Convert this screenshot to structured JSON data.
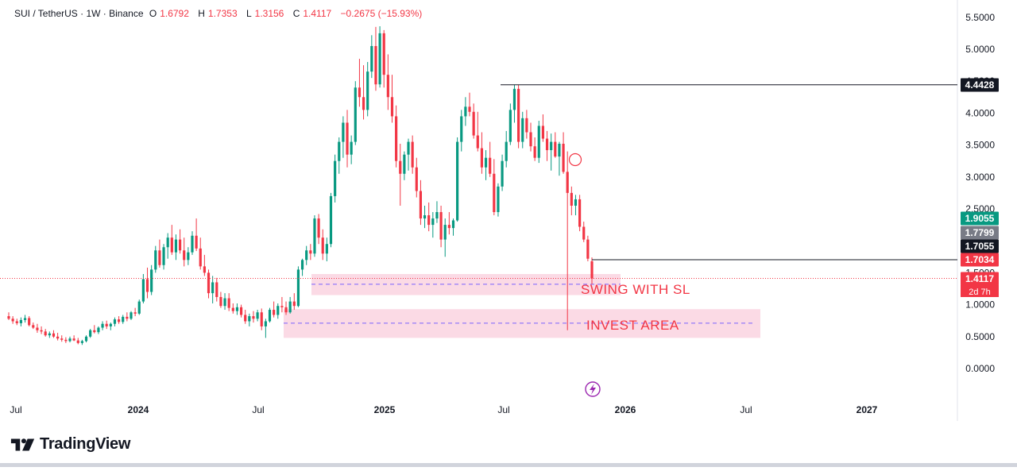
{
  "legend": {
    "symbol": "SUI / TetherUS · 1W · Binance",
    "o_label": "O",
    "o_value": "1.6792",
    "h_label": "H",
    "h_value": "1.7353",
    "l_label": "L",
    "l_value": "1.3156",
    "c_label": "C",
    "c_value": "1.4117",
    "change": "−0.2675 (−15.93%)"
  },
  "brand": {
    "name": "TradingView",
    "logo_icon": "tradingview-logo-icon"
  },
  "colors": {
    "up": "#089981",
    "down": "#f23645",
    "zone": "#f8bbd0",
    "zone_text": "#f23645",
    "dashed": "#7b61ff",
    "hline": "#131722",
    "axis_text": "#131722"
  },
  "annotations": {
    "swing_label": "SWING WITH SL",
    "invest_label": "INVEST AREA"
  },
  "price_labels": [
    {
      "value": "4.4428",
      "bg": "#131722",
      "fg": "#ffffff",
      "price": 4.4428
    },
    {
      "value": "1.9055",
      "bg": "#089981",
      "fg": "#ffffff",
      "price": 1.9055
    },
    {
      "value": "1.7799",
      "bg": "#787b86",
      "fg": "#ffffff",
      "price": 1.7799
    },
    {
      "value": "1.7055",
      "bg": "#131722",
      "fg": "#ffffff",
      "price": 1.7055
    },
    {
      "value": "1.7034",
      "bg": "#f23645",
      "fg": "#ffffff",
      "price": 1.7034
    },
    {
      "value": "1.4117",
      "bg": "#f23645",
      "fg": "#ffffff",
      "price": 1.4117
    }
  ],
  "countdown": "2d 7h",
  "chart_data": {
    "type": "candlestick",
    "title": "SUI / TetherUS · 1W · Binance",
    "x_ticks": [
      "Jul",
      "2024",
      "Jul",
      "2025",
      "Jul",
      "2026",
      "Jul",
      "2027"
    ],
    "x_tick_dates": [
      "2023-07-01",
      "2024-01-01",
      "2024-07-01",
      "2025-01-01",
      "2025-07-01",
      "2026-01-01",
      "2026-07-01",
      "2027-01-01"
    ],
    "y_ticks": [
      "5.5000",
      "5.0000",
      "4.5000",
      "4.0000",
      "3.5000",
      "3.0000",
      "2.5000",
      "1.5000",
      "1.0000",
      "0.5000",
      "0.0000"
    ],
    "ylim": [
      -0.15,
      5.7
    ],
    "series": [
      {
        "name": "SUI/USDT",
        "ohlc": [
          [
            0.82,
            0.88,
            0.76,
            0.78
          ],
          [
            0.78,
            0.82,
            0.7,
            0.74
          ],
          [
            0.74,
            0.78,
            0.68,
            0.71
          ],
          [
            0.71,
            0.8,
            0.66,
            0.76
          ],
          [
            0.76,
            0.84,
            0.72,
            0.79
          ],
          [
            0.79,
            0.82,
            0.66,
            0.68
          ],
          [
            0.68,
            0.72,
            0.62,
            0.64
          ],
          [
            0.64,
            0.7,
            0.56,
            0.6
          ],
          [
            0.6,
            0.66,
            0.54,
            0.58
          ],
          [
            0.58,
            0.62,
            0.5,
            0.52
          ],
          [
            0.52,
            0.58,
            0.48,
            0.55
          ],
          [
            0.55,
            0.6,
            0.48,
            0.5
          ],
          [
            0.5,
            0.56,
            0.44,
            0.47
          ],
          [
            0.47,
            0.52,
            0.42,
            0.45
          ],
          [
            0.45,
            0.49,
            0.4,
            0.43
          ],
          [
            0.43,
            0.5,
            0.41,
            0.47
          ],
          [
            0.47,
            0.52,
            0.43,
            0.44
          ],
          [
            0.44,
            0.48,
            0.38,
            0.4
          ],
          [
            0.4,
            0.45,
            0.37,
            0.43
          ],
          [
            0.43,
            0.52,
            0.41,
            0.5
          ],
          [
            0.5,
            0.62,
            0.48,
            0.6
          ],
          [
            0.6,
            0.68,
            0.55,
            0.57
          ],
          [
            0.57,
            0.66,
            0.54,
            0.64
          ],
          [
            0.64,
            0.74,
            0.6,
            0.7
          ],
          [
            0.7,
            0.75,
            0.62,
            0.66
          ],
          [
            0.66,
            0.72,
            0.6,
            0.7
          ],
          [
            0.7,
            0.8,
            0.66,
            0.77
          ],
          [
            0.77,
            0.82,
            0.7,
            0.73
          ],
          [
            0.73,
            0.84,
            0.7,
            0.81
          ],
          [
            0.81,
            0.88,
            0.74,
            0.78
          ],
          [
            0.78,
            0.9,
            0.76,
            0.88
          ],
          [
            0.88,
            0.95,
            0.82,
            0.86
          ],
          [
            0.86,
            1.08,
            0.84,
            1.05
          ],
          [
            1.05,
            1.48,
            1.02,
            1.4
          ],
          [
            1.4,
            1.58,
            1.1,
            1.2
          ],
          [
            1.2,
            1.62,
            1.15,
            1.55
          ],
          [
            1.55,
            1.92,
            1.5,
            1.85
          ],
          [
            1.85,
            2.02,
            1.58,
            1.62
          ],
          [
            1.62,
            1.95,
            1.55,
            1.9
          ],
          [
            1.9,
            2.12,
            1.72,
            2.05
          ],
          [
            2.05,
            2.25,
            1.78,
            1.82
          ],
          [
            1.82,
            2.1,
            1.7,
            2.02
          ],
          [
            2.02,
            2.18,
            1.8,
            1.85
          ],
          [
            1.85,
            2.05,
            1.6,
            1.7
          ],
          [
            1.7,
            1.9,
            1.62,
            1.82
          ],
          [
            1.82,
            2.15,
            1.78,
            2.08
          ],
          [
            2.08,
            2.35,
            1.84,
            1.88
          ],
          [
            1.88,
            2.05,
            1.55,
            1.6
          ],
          [
            1.6,
            1.78,
            1.45,
            1.5
          ],
          [
            1.5,
            1.55,
            1.1,
            1.18
          ],
          [
            1.18,
            1.45,
            1.02,
            1.35
          ],
          [
            1.35,
            1.42,
            1.05,
            1.12
          ],
          [
            1.12,
            1.2,
            0.95,
            0.98
          ],
          [
            0.98,
            1.18,
            0.92,
            1.1
          ],
          [
            1.1,
            1.18,
            0.9,
            0.95
          ],
          [
            0.95,
            1.02,
            0.86,
            0.9
          ],
          [
            0.9,
            1.02,
            0.84,
            0.96
          ],
          [
            0.96,
            1.0,
            0.8,
            0.84
          ],
          [
            0.84,
            0.92,
            0.7,
            0.74
          ],
          [
            0.74,
            0.86,
            0.66,
            0.82
          ],
          [
            0.82,
            0.9,
            0.72,
            0.78
          ],
          [
            0.78,
            0.92,
            0.74,
            0.88
          ],
          [
            0.88,
            0.94,
            0.6,
            0.66
          ],
          [
            0.66,
            0.78,
            0.48,
            0.74
          ],
          [
            0.74,
            0.95,
            0.72,
            0.92
          ],
          [
            0.92,
            1.05,
            0.8,
            0.84
          ],
          [
            0.84,
            1.02,
            0.78,
            0.98
          ],
          [
            0.98,
            1.12,
            0.88,
            0.96
          ],
          [
            0.96,
            1.05,
            0.84,
            0.88
          ],
          [
            0.88,
            1.12,
            0.86,
            1.05
          ],
          [
            1.05,
            1.18,
            0.92,
            0.98
          ],
          [
            0.98,
            1.6,
            0.96,
            1.55
          ],
          [
            1.55,
            1.72,
            1.45,
            1.7
          ],
          [
            1.7,
            1.92,
            1.62,
            1.85
          ],
          [
            1.85,
            1.95,
            1.7,
            1.8
          ],
          [
            1.8,
            2.4,
            1.75,
            2.35
          ],
          [
            2.35,
            2.42,
            1.95,
            2.05
          ],
          [
            2.05,
            2.18,
            1.7,
            1.8
          ],
          [
            1.8,
            2.05,
            1.68,
            1.95
          ],
          [
            1.95,
            2.75,
            1.9,
            2.7
          ],
          [
            2.7,
            3.35,
            2.6,
            3.25
          ],
          [
            3.25,
            3.62,
            3.05,
            3.55
          ],
          [
            3.55,
            3.95,
            3.3,
            3.85
          ],
          [
            3.85,
            4.05,
            3.15,
            3.35
          ],
          [
            3.35,
            3.65,
            3.2,
            3.55
          ],
          [
            3.55,
            4.5,
            3.5,
            4.4
          ],
          [
            4.4,
            4.85,
            4.1,
            4.25
          ],
          [
            4.25,
            4.75,
            3.9,
            4.05
          ],
          [
            4.05,
            4.8,
            3.95,
            4.65
          ],
          [
            4.65,
            5.22,
            4.55,
            5.05
          ],
          [
            5.05,
            5.35,
            4.35,
            4.45
          ],
          [
            4.45,
            5.36,
            4.4,
            5.25
          ],
          [
            5.25,
            5.3,
            4.4,
            4.6
          ],
          [
            4.6,
            4.92,
            4.05,
            4.25
          ],
          [
            4.25,
            4.6,
            3.85,
            3.95
          ],
          [
            3.95,
            4.12,
            3.15,
            3.25
          ],
          [
            3.25,
            3.52,
            2.55,
            3.05
          ],
          [
            3.05,
            3.4,
            2.95,
            3.35
          ],
          [
            3.35,
            3.6,
            3.1,
            3.55
          ],
          [
            3.55,
            3.65,
            3.05,
            3.15
          ],
          [
            3.15,
            3.3,
            2.68,
            2.78
          ],
          [
            2.78,
            2.95,
            2.25,
            2.35
          ],
          [
            2.35,
            2.55,
            2.2,
            2.4
          ],
          [
            2.4,
            2.6,
            2.15,
            2.25
          ],
          [
            2.25,
            2.45,
            2.05,
            2.35
          ],
          [
            2.35,
            2.62,
            2.28,
            2.45
          ],
          [
            2.45,
            2.55,
            1.9,
            2.02
          ],
          [
            2.02,
            2.35,
            1.75,
            2.25
          ],
          [
            2.25,
            2.45,
            2.1,
            2.2
          ],
          [
            2.2,
            2.35,
            2.08,
            2.32
          ],
          [
            2.32,
            3.62,
            2.3,
            3.55
          ],
          [
            3.55,
            4.05,
            3.4,
            3.95
          ],
          [
            3.95,
            4.25,
            3.8,
            4.1
          ],
          [
            4.1,
            4.32,
            3.95,
            4.02
          ],
          [
            4.02,
            4.15,
            3.6,
            3.65
          ],
          [
            3.65,
            4.02,
            3.4,
            3.45
          ],
          [
            3.45,
            3.7,
            3.05,
            3.15
          ],
          [
            3.15,
            3.42,
            2.95,
            3.3
          ],
          [
            3.3,
            3.55,
            3.0,
            3.05
          ],
          [
            3.05,
            3.28,
            2.4,
            2.45
          ],
          [
            2.45,
            2.9,
            2.38,
            2.85
          ],
          [
            2.85,
            3.35,
            2.78,
            3.25
          ],
          [
            3.25,
            3.72,
            3.15,
            3.55
          ],
          [
            3.55,
            4.15,
            3.5,
            4.05
          ],
          [
            4.05,
            4.44,
            3.85,
            4.38
          ],
          [
            4.38,
            4.44,
            3.45,
            3.55
          ],
          [
            3.55,
            4.02,
            3.45,
            3.92
          ],
          [
            3.92,
            4.05,
            3.6,
            3.7
          ],
          [
            3.7,
            3.85,
            3.4,
            3.48
          ],
          [
            3.48,
            3.62,
            3.25,
            3.3
          ],
          [
            3.3,
            3.88,
            3.22,
            3.8
          ],
          [
            3.8,
            3.98,
            3.55,
            3.6
          ],
          [
            3.6,
            3.72,
            3.25,
            3.42
          ],
          [
            3.42,
            3.68,
            3.1,
            3.55
          ],
          [
            3.55,
            3.7,
            3.3,
            3.32
          ],
          [
            3.32,
            3.55,
            3.02,
            3.52
          ],
          [
            3.52,
            3.7,
            3.05,
            3.08
          ],
          [
            3.08,
            3.4,
            0.6,
            2.75
          ],
          [
            2.75,
            2.85,
            2.4,
            2.55
          ],
          [
            2.55,
            2.72,
            2.4,
            2.65
          ],
          [
            2.65,
            2.72,
            2.15,
            2.22
          ],
          [
            2.22,
            2.3,
            1.98,
            2.02
          ],
          [
            2.02,
            2.08,
            1.68,
            1.72
          ],
          [
            1.68,
            1.74,
            1.32,
            1.41
          ]
        ]
      }
    ],
    "horizontal_lines": [
      4.4428,
      1.7034
    ],
    "current_price": 1.4117,
    "zones": [
      {
        "label": "SWING WITH SL",
        "from": 1.15,
        "to": 1.48,
        "mid": 1.32
      },
      {
        "label": "INVEST AREA",
        "from": 0.48,
        "to": 0.93,
        "mid": 0.71
      }
    ]
  }
}
